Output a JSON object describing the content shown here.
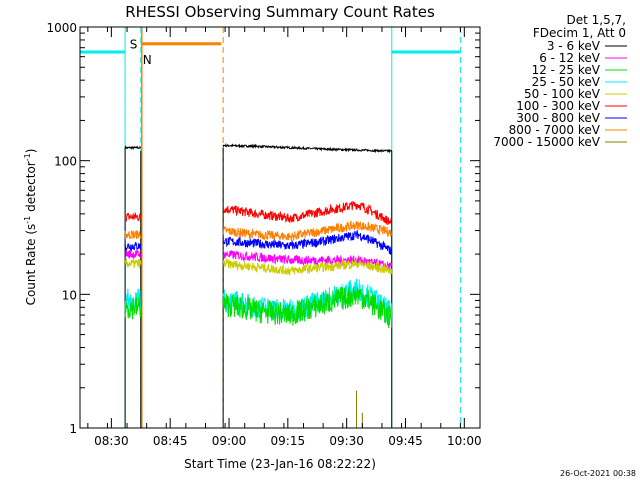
{
  "chart_data": {
    "type": "line",
    "title": "RHESSI Observing Summary Count Rates",
    "xlabel": "Start Time (23-Jan-16 08:22:22)",
    "ylabel_main": "Count Rate (s",
    "ylabel_sup1": "-1",
    "ylabel_mid": " detector",
    "ylabel_sup2": "-1",
    "ylabel_end": ")",
    "y_scale": "log",
    "ylim": [
      1,
      1000
    ],
    "xlim_minutes_after_0822": [
      0,
      102
    ],
    "x_ticks": [
      {
        "label": "08:30",
        "m": 8
      },
      {
        "label": "08:45",
        "m": 23
      },
      {
        "label": "09:00",
        "m": 38
      },
      {
        "label": "09:15",
        "m": 53
      },
      {
        "label": "09:30",
        "m": 68
      },
      {
        "label": "09:45",
        "m": 83
      },
      {
        "label": "10:00",
        "m": 98
      }
    ],
    "y_ticks": [
      {
        "label": "1",
        "v": 1
      },
      {
        "label": "10",
        "v": 10
      },
      {
        "label": "100",
        "v": 100
      },
      {
        "label": "1000",
        "v": 1000
      }
    ],
    "legend_header": [
      "Det 1,5,7,",
      "FDecim 1, Att 0"
    ],
    "legend": [
      {
        "name": "3 - 6 keV",
        "color": "#000000"
      },
      {
        "name": "6 - 12 keV",
        "color": "#ff00ff"
      },
      {
        "name": "12 - 25 keV",
        "color": "#00dd00"
      },
      {
        "name": "25 - 50 keV",
        "color": "#00eeee"
      },
      {
        "name": "50 - 100 keV",
        "color": "#cccc00"
      },
      {
        "name": "100 - 300 keV",
        "color": "#ff0000"
      },
      {
        "name": "300 - 800 keV",
        "color": "#0000ff"
      },
      {
        "name": "800 - 7000 keV",
        "color": "#ff8000"
      },
      {
        "name": "7000 - 15000 keV",
        "color": "#808000"
      }
    ],
    "flag_labels": {
      "saa": "S",
      "night": "N"
    },
    "footer_date": "26-Oct-2021 00:38",
    "segments": [
      {
        "start_m": 11.5,
        "end_m": 15.5
      },
      {
        "start_m": 36.5,
        "end_m": 79.5
      }
    ],
    "series": [
      {
        "name": "3 - 6 keV",
        "color": "#000000",
        "seg1": 125,
        "seg2": [
          130,
          128,
          125,
          122,
          120,
          118
        ]
      },
      {
        "name": "100 - 300 keV",
        "color": "#ff0000",
        "seg1": 38,
        "seg2": [
          44,
          40,
          37,
          42,
          47,
          34
        ]
      },
      {
        "name": "800 - 7000 keV",
        "color": "#ff8000",
        "seg1": 28,
        "seg2": [
          30,
          28,
          27,
          30,
          33,
          29
        ]
      },
      {
        "name": "300 - 800 keV",
        "color": "#0000ff",
        "seg1": 23,
        "seg2": [
          25,
          24,
          23,
          25,
          28,
          21
        ]
      },
      {
        "name": "6 - 12 keV",
        "color": "#ff00ff",
        "seg1": 20,
        "seg2": [
          20,
          19,
          18,
          18,
          18,
          16
        ]
      },
      {
        "name": "50 - 100 keV",
        "color": "#cccc00",
        "seg1": 17,
        "seg2": [
          17,
          16,
          15,
          16,
          17,
          15
        ]
      },
      {
        "name": "25 - 50 keV",
        "color": "#00eeee",
        "seg1": 9,
        "seg2": [
          9,
          8,
          7.5,
          9,
          11,
          7
        ]
      },
      {
        "name": "12 - 25 keV",
        "color": "#00dd00",
        "seg1": 8,
        "seg2": [
          8.5,
          7.5,
          7,
          8.5,
          10,
          6.5
        ]
      }
    ],
    "flags": {
      "cyan_horizontal": [
        {
          "start_m": 0,
          "end_m": 11.5,
          "v": 650
        },
        {
          "start_m": 79.5,
          "end_m": 97,
          "v": 650
        }
      ],
      "orange_horizontal": [
        {
          "start_m": 15.5,
          "end_m": 36,
          "v": 750
        }
      ],
      "cyan_solid_vertical_m": [
        11.5,
        79.5
      ],
      "cyan_dashed_vertical_m": [
        15.5,
        97
      ],
      "orange_solid_vertical_m": [
        15.5
      ],
      "orange_dashed_vertical_m": [
        36.5
      ]
    }
  }
}
